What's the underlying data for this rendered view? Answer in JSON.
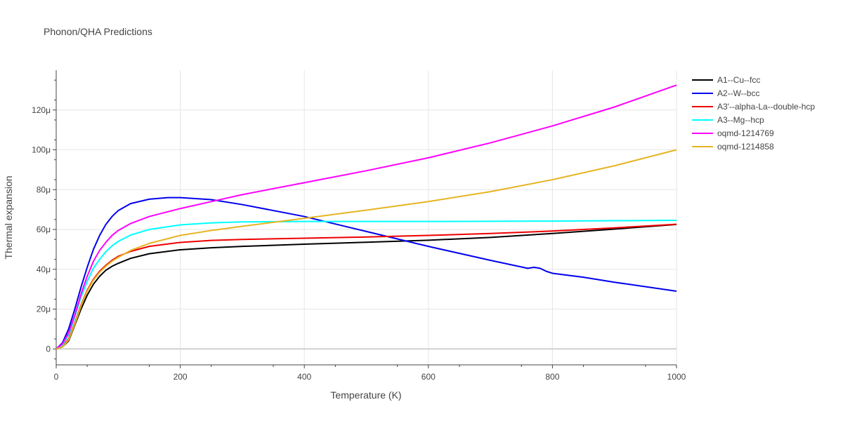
{
  "chart_data": {
    "type": "line",
    "title": "Phonon/QHA Predictions",
    "xlabel": "Temperature (K)",
    "ylabel": "Thermal expansion",
    "xlim": [
      0,
      1000
    ],
    "ylim": [
      -8,
      140
    ],
    "x_ticks": [
      0,
      200,
      400,
      600,
      800,
      1000
    ],
    "x_tick_labels": [
      "0",
      "200",
      "400",
      "600",
      "800",
      "1000"
    ],
    "y_ticks": [
      0,
      20,
      40,
      60,
      80,
      100,
      120
    ],
    "y_tick_labels": [
      "0",
      "20μ",
      "40μ",
      "60μ",
      "80μ",
      "100μ",
      "120μ"
    ],
    "y_unit": "μ (1e-6)",
    "grid": true,
    "legend_position": "right",
    "series": [
      {
        "name": "A1--Cu--fcc",
        "color": "#000000",
        "points": [
          [
            0,
            0
          ],
          [
            10,
            1
          ],
          [
            20,
            4
          ],
          [
            30,
            12
          ],
          [
            40,
            20
          ],
          [
            50,
            27
          ],
          [
            60,
            32.5
          ],
          [
            70,
            36.5
          ],
          [
            80,
            39.5
          ],
          [
            90,
            41.5
          ],
          [
            100,
            43
          ],
          [
            120,
            45.5
          ],
          [
            150,
            47.8
          ],
          [
            200,
            49.8
          ],
          [
            250,
            50.8
          ],
          [
            300,
            51.5
          ],
          [
            400,
            52.6
          ],
          [
            500,
            53.6
          ],
          [
            600,
            54.6
          ],
          [
            700,
            56
          ],
          [
            800,
            58
          ],
          [
            900,
            60.2
          ],
          [
            1000,
            62.5
          ]
        ]
      },
      {
        "name": "A2--W--bcc",
        "color": "#0000ee",
        "points": [
          [
            0,
            0
          ],
          [
            10,
            3
          ],
          [
            20,
            10
          ],
          [
            30,
            20
          ],
          [
            40,
            31
          ],
          [
            50,
            41
          ],
          [
            60,
            50
          ],
          [
            70,
            57
          ],
          [
            80,
            62.5
          ],
          [
            90,
            66.5
          ],
          [
            100,
            69.5
          ],
          [
            120,
            73
          ],
          [
            150,
            75.2
          ],
          [
            180,
            76
          ],
          [
            200,
            76
          ],
          [
            250,
            75
          ],
          [
            300,
            72.5
          ],
          [
            400,
            66.5
          ],
          [
            500,
            59
          ],
          [
            600,
            51.5
          ],
          [
            700,
            44.5
          ],
          [
            760,
            40.5
          ],
          [
            770,
            41
          ],
          [
            780,
            40.5
          ],
          [
            790,
            39
          ],
          [
            800,
            38
          ],
          [
            850,
            36
          ],
          [
            900,
            33.5
          ],
          [
            1000,
            29
          ]
        ]
      },
      {
        "name": "A3'--alpha-La--double-hcp",
        "color": "#ee0000",
        "points": [
          [
            0,
            0
          ],
          [
            10,
            1.2
          ],
          [
            20,
            5
          ],
          [
            30,
            13
          ],
          [
            40,
            22
          ],
          [
            50,
            29.5
          ],
          [
            60,
            35
          ],
          [
            70,
            39
          ],
          [
            80,
            42
          ],
          [
            90,
            44.5
          ],
          [
            100,
            46.5
          ],
          [
            120,
            49
          ],
          [
            150,
            51.5
          ],
          [
            200,
            53.5
          ],
          [
            250,
            54.5
          ],
          [
            300,
            55
          ],
          [
            400,
            55.6
          ],
          [
            500,
            56.2
          ],
          [
            600,
            57
          ],
          [
            700,
            58
          ],
          [
            800,
            59.2
          ],
          [
            900,
            60.8
          ],
          [
            1000,
            62.6
          ]
        ]
      },
      {
        "name": "A3--Mg--hcp",
        "color": "#00ffff",
        "points": [
          [
            0,
            0
          ],
          [
            10,
            2
          ],
          [
            20,
            7
          ],
          [
            30,
            16
          ],
          [
            40,
            26
          ],
          [
            50,
            34
          ],
          [
            60,
            40.5
          ],
          [
            70,
            45
          ],
          [
            80,
            48.8
          ],
          [
            90,
            51.8
          ],
          [
            100,
            54
          ],
          [
            120,
            57.2
          ],
          [
            150,
            60
          ],
          [
            200,
            62.3
          ],
          [
            250,
            63.3
          ],
          [
            300,
            63.8
          ],
          [
            400,
            64
          ],
          [
            500,
            64
          ],
          [
            600,
            64
          ],
          [
            700,
            64.1
          ],
          [
            800,
            64.2
          ],
          [
            900,
            64.4
          ],
          [
            1000,
            64.6
          ]
        ]
      },
      {
        "name": "oqmd-1214769",
        "color": "#ff00ff",
        "points": [
          [
            0,
            0
          ],
          [
            10,
            2.5
          ],
          [
            20,
            8
          ],
          [
            30,
            17
          ],
          [
            40,
            27.5
          ],
          [
            50,
            36.5
          ],
          [
            60,
            44
          ],
          [
            70,
            49.5
          ],
          [
            80,
            53.5
          ],
          [
            90,
            57
          ],
          [
            100,
            59.5
          ],
          [
            120,
            63
          ],
          [
            150,
            66.5
          ],
          [
            200,
            70.5
          ],
          [
            250,
            74
          ],
          [
            300,
            77.5
          ],
          [
            400,
            83.5
          ],
          [
            500,
            89.5
          ],
          [
            600,
            96
          ],
          [
            700,
            103.5
          ],
          [
            800,
            112
          ],
          [
            900,
            121.5
          ],
          [
            1000,
            132.5
          ]
        ]
      },
      {
        "name": "oqmd-1214858",
        "color": "#e6b422",
        "points": [
          [
            0,
            0
          ],
          [
            10,
            1
          ],
          [
            20,
            4.5
          ],
          [
            30,
            12.5
          ],
          [
            40,
            21.5
          ],
          [
            50,
            29
          ],
          [
            60,
            34.5
          ],
          [
            70,
            38.5
          ],
          [
            80,
            41.5
          ],
          [
            90,
            44
          ],
          [
            100,
            46
          ],
          [
            120,
            49.5
          ],
          [
            150,
            53
          ],
          [
            200,
            57
          ],
          [
            250,
            59.5
          ],
          [
            300,
            61.6
          ],
          [
            400,
            65.6
          ],
          [
            500,
            69.7
          ],
          [
            600,
            74
          ],
          [
            700,
            79
          ],
          [
            800,
            85
          ],
          [
            900,
            92
          ],
          [
            1000,
            100
          ]
        ]
      }
    ]
  }
}
